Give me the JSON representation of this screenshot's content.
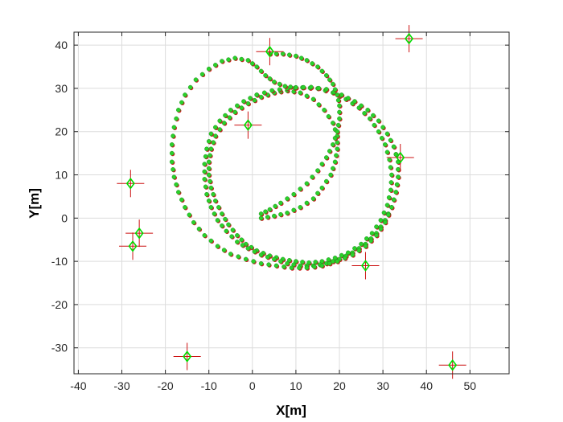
{
  "chart_data": {
    "type": "scatter",
    "xlabel": "X[m]",
    "ylabel": "Y[m]",
    "xlim": [
      -41,
      59
    ],
    "ylim": [
      -36,
      43
    ],
    "xticks": [
      -40,
      -30,
      -20,
      -10,
      0,
      10,
      20,
      30,
      40,
      50
    ],
    "yticks": [
      -30,
      -20,
      -10,
      0,
      10,
      20,
      30,
      40
    ],
    "grid": true,
    "colors": {
      "estimate": "#2ad12a",
      "truth": "#cc2222",
      "landmark": "#00dd00",
      "landmark_cross": "#cc1111"
    },
    "landmarks": [
      {
        "x": 4,
        "y": 38.5
      },
      {
        "x": 36,
        "y": 41.5
      },
      {
        "x": -1,
        "y": 21.5
      },
      {
        "x": 34,
        "y": 14
      },
      {
        "x": -28,
        "y": 8
      },
      {
        "x": -26,
        "y": -3.5
      },
      {
        "x": -27.5,
        "y": -6.5
      },
      {
        "x": 26,
        "y": -11
      },
      {
        "x": -15,
        "y": -32
      },
      {
        "x": 46,
        "y": -34
      }
    ],
    "trajectory": {
      "description_points": "spiral path from (3,0) outward, two overlapping loops",
      "inner_spiral": [
        [
          2,
          0
        ],
        [
          5,
          0.5
        ],
        [
          8,
          1.2
        ],
        [
          11,
          2.5
        ],
        [
          14,
          4.5
        ],
        [
          16,
          7
        ],
        [
          18,
          10
        ],
        [
          19,
          13
        ],
        [
          19.5,
          16
        ],
        [
          19.5,
          19
        ],
        [
          18.5,
          22
        ],
        [
          16.5,
          25
        ],
        [
          14,
          27.5
        ],
        [
          11,
          29
        ],
        [
          8,
          29.5
        ],
        [
          5,
          29
        ],
        [
          2,
          28
        ],
        [
          -1,
          26.5
        ],
        [
          -4,
          24.5
        ],
        [
          -6.5,
          22
        ],
        [
          -8.5,
          19
        ],
        [
          -9.5,
          16
        ],
        [
          -10,
          13
        ],
        [
          -10,
          10
        ],
        [
          -9.5,
          7
        ],
        [
          -8.5,
          4
        ],
        [
          -7,
          1
        ],
        [
          -5.5,
          -1.5
        ],
        [
          -3.5,
          -4
        ],
        [
          -1.5,
          -6
        ],
        [
          1,
          -7.5
        ],
        [
          4,
          -8.7
        ],
        [
          7,
          -9.5
        ],
        [
          10,
          -10
        ],
        [
          13,
          -10.3
        ],
        [
          16,
          -10
        ],
        [
          19,
          -9.2
        ],
        [
          22,
          -8
        ],
        [
          25,
          -6
        ],
        [
          27.5,
          -3.5
        ],
        [
          29.5,
          -0.5
        ],
        [
          31,
          3
        ],
        [
          31.8,
          6.5
        ],
        [
          32,
          10
        ],
        [
          31.5,
          13.5
        ],
        [
          30.5,
          17
        ],
        [
          29,
          20
        ],
        [
          27,
          23
        ],
        [
          24.5,
          25.5
        ],
        [
          21.5,
          27.5
        ],
        [
          18.5,
          29
        ],
        [
          15,
          30
        ],
        [
          11.5,
          30.2
        ],
        [
          8,
          30
        ],
        [
          4.5,
          29.5
        ],
        [
          1,
          28.5
        ]
      ],
      "outer_loop": [
        [
          1,
          28.5
        ],
        [
          -2,
          27
        ],
        [
          -5,
          25
        ],
        [
          -7.5,
          22.5
        ],
        [
          -9.5,
          19.5
        ],
        [
          -10.5,
          16
        ],
        [
          -11,
          12.5
        ],
        [
          -11,
          9
        ],
        [
          -10.5,
          5.5
        ],
        [
          -9.5,
          2.5
        ],
        [
          -8,
          -0.5
        ],
        [
          -6,
          -3
        ],
        [
          -3.5,
          -5.5
        ],
        [
          -1,
          -7
        ],
        [
          2,
          -8.5
        ],
        [
          5,
          -9.5
        ],
        [
          8,
          -10.5
        ],
        [
          11,
          -11
        ],
        [
          14,
          -11
        ],
        [
          17,
          -10.5
        ],
        [
          20,
          -9.5
        ],
        [
          23,
          -8
        ],
        [
          26,
          -6
        ],
        [
          28.5,
          -3.5
        ],
        [
          30.5,
          -0.5
        ],
        [
          32,
          2.5
        ],
        [
          33,
          6
        ],
        [
          33.5,
          9.5
        ],
        [
          33.5,
          13
        ],
        [
          32.5,
          16.5
        ],
        [
          31,
          19.5
        ],
        [
          29,
          22.5
        ],
        [
          26.5,
          25
        ],
        [
          23.5,
          27
        ],
        [
          20.5,
          28.5
        ],
        [
          17,
          29.8
        ],
        [
          13.5,
          30.3
        ],
        [
          10,
          30.2
        ]
      ],
      "big_loop": [
        [
          10,
          30.2
        ],
        [
          7.5,
          30.5
        ],
        [
          5,
          31.5
        ],
        [
          3,
          33
        ],
        [
          1,
          35
        ],
        [
          -1,
          36.5
        ],
        [
          -4,
          37
        ],
        [
          -7,
          36.3
        ],
        [
          -10,
          34.5
        ],
        [
          -13,
          32
        ],
        [
          -15.5,
          28.5
        ],
        [
          -17,
          25
        ],
        [
          -18,
          21
        ],
        [
          -18.5,
          17
        ],
        [
          -18.5,
          13
        ],
        [
          -18,
          9.5
        ],
        [
          -17,
          6
        ],
        [
          -15.5,
          2.5
        ],
        [
          -13.5,
          -1
        ],
        [
          -11,
          -4
        ],
        [
          -8,
          -6.5
        ],
        [
          -5,
          -8.3
        ],
        [
          -1.5,
          -9.5
        ],
        [
          2,
          -10.5
        ],
        [
          5.5,
          -11
        ],
        [
          9,
          -11.5
        ],
        [
          12.5,
          -11.5
        ],
        [
          16,
          -11
        ],
        [
          19.5,
          -10
        ],
        [
          23,
          -8.5
        ],
        [
          26,
          -6.5
        ],
        [
          28.5,
          -4
        ],
        [
          30.5,
          -1
        ],
        [
          32,
          2.5
        ],
        [
          33,
          6
        ],
        [
          33.5,
          9.5
        ],
        [
          33.5,
          13
        ],
        [
          32.5,
          16.5
        ]
      ],
      "top_arc": [
        [
          4,
          38
        ],
        [
          7,
          38
        ],
        [
          10,
          37.5
        ],
        [
          12.5,
          36.5
        ],
        [
          15,
          35
        ],
        [
          17,
          33
        ],
        [
          18.5,
          31
        ],
        [
          19.5,
          28.5
        ],
        [
          20,
          26
        ],
        [
          20,
          23
        ],
        [
          19.5,
          20
        ],
        [
          18.5,
          17
        ],
        [
          17,
          14
        ],
        [
          15,
          11
        ],
        [
          12.5,
          8
        ],
        [
          9.5,
          5.5
        ],
        [
          6.5,
          3.5
        ],
        [
          4,
          2
        ],
        [
          2,
          1
        ]
      ]
    }
  }
}
